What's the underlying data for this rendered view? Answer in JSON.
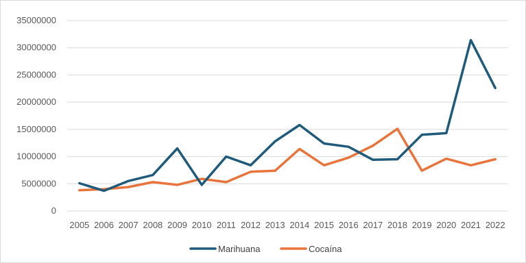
{
  "chart_data": {
    "type": "line",
    "title": "",
    "xlabel": "",
    "ylabel": "",
    "x": [
      "2005",
      "2006",
      "2007",
      "2008",
      "2009",
      "2010",
      "2011",
      "2012",
      "2013",
      "2014",
      "2015",
      "2016",
      "2017",
      "2018",
      "2019",
      "2020",
      "2021",
      "2022"
    ],
    "ylim": [
      0,
      35000000
    ],
    "yticks": [
      "0",
      "5000000",
      "10000000",
      "15000000",
      "20000000",
      "25000000",
      "30000000",
      "35000000"
    ],
    "grid": true,
    "legend_position": "bottom",
    "series": [
      {
        "name": "Marihuana",
        "color": "#1f5a7a",
        "values": [
          5100000,
          3700000,
          5500000,
          6600000,
          11500000,
          4800000,
          10000000,
          8400000,
          12800000,
          15800000,
          12400000,
          11800000,
          9400000,
          9500000,
          14000000,
          14300000,
          31400000,
          22600000
        ]
      },
      {
        "name": "Cocaína",
        "color": "#e8743b",
        "values": [
          3800000,
          4000000,
          4400000,
          5300000,
          4800000,
          5900000,
          5300000,
          7200000,
          7400000,
          11400000,
          8400000,
          9800000,
          12000000,
          15100000,
          7400000,
          9600000,
          8400000,
          9500000
        ]
      }
    ]
  }
}
